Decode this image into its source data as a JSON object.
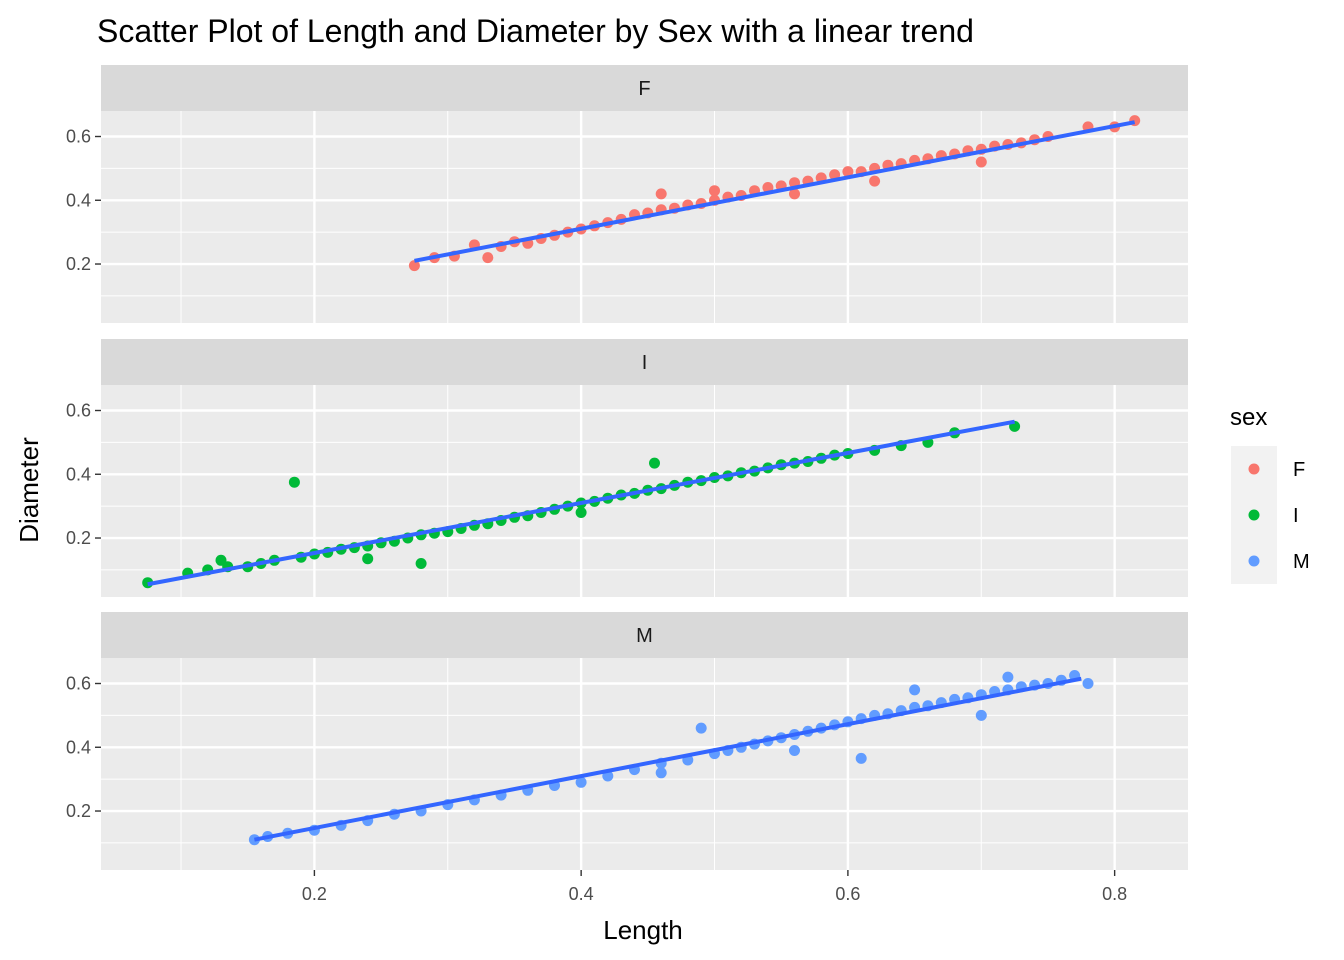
{
  "chart_data": {
    "type": "scatter",
    "title": "Scatter Plot of Length and Diameter by Sex with a linear trend",
    "xlabel": "Length",
    "ylabel": "Diameter",
    "xlim": [
      0.04,
      0.855
    ],
    "ylim": [
      0.015,
      0.68
    ],
    "x_ticks": [
      0.2,
      0.4,
      0.6,
      0.8
    ],
    "x_tick_labels": [
      "0.2",
      "0.4",
      "0.6",
      "0.8"
    ],
    "y_ticks": [
      0.2,
      0.4,
      0.6
    ],
    "y_tick_labels": [
      "0.2",
      "0.4",
      "0.6"
    ],
    "grid": true,
    "facet_by": "sex",
    "legend": {
      "title": "sex",
      "position": "right",
      "entries": [
        "F",
        "I",
        "M"
      ]
    },
    "colors": {
      "F": "#F8766D",
      "I": "#00BA38",
      "M": "#619CFF",
      "trend": "#3366FF"
    },
    "series": [
      {
        "name": "F",
        "trend": {
          "x": [
            0.275,
            0.815
          ],
          "y": [
            0.21,
            0.645
          ]
        },
        "points": [
          [
            0.275,
            0.195
          ],
          [
            0.29,
            0.22
          ],
          [
            0.305,
            0.225
          ],
          [
            0.32,
            0.26
          ],
          [
            0.33,
            0.22
          ],
          [
            0.34,
            0.255
          ],
          [
            0.35,
            0.27
          ],
          [
            0.36,
            0.265
          ],
          [
            0.37,
            0.28
          ],
          [
            0.38,
            0.29
          ],
          [
            0.39,
            0.3
          ],
          [
            0.4,
            0.31
          ],
          [
            0.41,
            0.32
          ],
          [
            0.42,
            0.33
          ],
          [
            0.43,
            0.34
          ],
          [
            0.44,
            0.355
          ],
          [
            0.45,
            0.36
          ],
          [
            0.46,
            0.37
          ],
          [
            0.46,
            0.42
          ],
          [
            0.47,
            0.375
          ],
          [
            0.48,
            0.385
          ],
          [
            0.49,
            0.39
          ],
          [
            0.5,
            0.4
          ],
          [
            0.5,
            0.43
          ],
          [
            0.51,
            0.41
          ],
          [
            0.52,
            0.415
          ],
          [
            0.53,
            0.43
          ],
          [
            0.54,
            0.44
          ],
          [
            0.55,
            0.445
          ],
          [
            0.56,
            0.455
          ],
          [
            0.57,
            0.46
          ],
          [
            0.58,
            0.47
          ],
          [
            0.59,
            0.48
          ],
          [
            0.6,
            0.49
          ],
          [
            0.61,
            0.49
          ],
          [
            0.62,
            0.5
          ],
          [
            0.63,
            0.51
          ],
          [
            0.64,
            0.515
          ],
          [
            0.65,
            0.525
          ],
          [
            0.66,
            0.53
          ],
          [
            0.67,
            0.54
          ],
          [
            0.68,
            0.545
          ],
          [
            0.69,
            0.555
          ],
          [
            0.7,
            0.56
          ],
          [
            0.71,
            0.57
          ],
          [
            0.72,
            0.575
          ],
          [
            0.73,
            0.58
          ],
          [
            0.74,
            0.59
          ],
          [
            0.75,
            0.6
          ],
          [
            0.78,
            0.63
          ],
          [
            0.8,
            0.63
          ],
          [
            0.815,
            0.65
          ],
          [
            0.56,
            0.42
          ],
          [
            0.62,
            0.46
          ],
          [
            0.7,
            0.52
          ]
        ]
      },
      {
        "name": "I",
        "trend": {
          "x": [
            0.075,
            0.725
          ],
          "y": [
            0.055,
            0.565
          ]
        },
        "points": [
          [
            0.075,
            0.06
          ],
          [
            0.105,
            0.09
          ],
          [
            0.12,
            0.1
          ],
          [
            0.13,
            0.13
          ],
          [
            0.135,
            0.11
          ],
          [
            0.15,
            0.11
          ],
          [
            0.16,
            0.12
          ],
          [
            0.17,
            0.13
          ],
          [
            0.185,
            0.375
          ],
          [
            0.19,
            0.14
          ],
          [
            0.2,
            0.15
          ],
          [
            0.21,
            0.155
          ],
          [
            0.22,
            0.165
          ],
          [
            0.23,
            0.17
          ],
          [
            0.24,
            0.175
          ],
          [
            0.25,
            0.185
          ],
          [
            0.26,
            0.19
          ],
          [
            0.27,
            0.2
          ],
          [
            0.28,
            0.12
          ],
          [
            0.28,
            0.21
          ],
          [
            0.29,
            0.215
          ],
          [
            0.3,
            0.22
          ],
          [
            0.31,
            0.23
          ],
          [
            0.32,
            0.24
          ],
          [
            0.33,
            0.245
          ],
          [
            0.34,
            0.255
          ],
          [
            0.35,
            0.265
          ],
          [
            0.36,
            0.27
          ],
          [
            0.37,
            0.28
          ],
          [
            0.38,
            0.29
          ],
          [
            0.39,
            0.3
          ],
          [
            0.4,
            0.31
          ],
          [
            0.41,
            0.315
          ],
          [
            0.42,
            0.325
          ],
          [
            0.43,
            0.335
          ],
          [
            0.44,
            0.34
          ],
          [
            0.45,
            0.35
          ],
          [
            0.455,
            0.435
          ],
          [
            0.46,
            0.355
          ],
          [
            0.47,
            0.365
          ],
          [
            0.48,
            0.375
          ],
          [
            0.49,
            0.38
          ],
          [
            0.5,
            0.39
          ],
          [
            0.51,
            0.395
          ],
          [
            0.52,
            0.405
          ],
          [
            0.53,
            0.41
          ],
          [
            0.54,
            0.42
          ],
          [
            0.55,
            0.43
          ],
          [
            0.56,
            0.435
          ],
          [
            0.57,
            0.44
          ],
          [
            0.58,
            0.45
          ],
          [
            0.59,
            0.46
          ],
          [
            0.6,
            0.465
          ],
          [
            0.62,
            0.475
          ],
          [
            0.64,
            0.49
          ],
          [
            0.66,
            0.5
          ],
          [
            0.68,
            0.53
          ],
          [
            0.725,
            0.55
          ],
          [
            0.24,
            0.135
          ],
          [
            0.4,
            0.28
          ]
        ]
      },
      {
        "name": "M",
        "trend": {
          "x": [
            0.155,
            0.775
          ],
          "y": [
            0.11,
            0.615
          ]
        },
        "points": [
          [
            0.155,
            0.11
          ],
          [
            0.165,
            0.12
          ],
          [
            0.18,
            0.13
          ],
          [
            0.2,
            0.14
          ],
          [
            0.22,
            0.155
          ],
          [
            0.24,
            0.17
          ],
          [
            0.26,
            0.19
          ],
          [
            0.28,
            0.2
          ],
          [
            0.3,
            0.22
          ],
          [
            0.32,
            0.235
          ],
          [
            0.34,
            0.25
          ],
          [
            0.36,
            0.265
          ],
          [
            0.38,
            0.28
          ],
          [
            0.4,
            0.29
          ],
          [
            0.42,
            0.31
          ],
          [
            0.44,
            0.33
          ],
          [
            0.46,
            0.35
          ],
          [
            0.48,
            0.36
          ],
          [
            0.49,
            0.46
          ],
          [
            0.5,
            0.38
          ],
          [
            0.51,
            0.39
          ],
          [
            0.52,
            0.4
          ],
          [
            0.53,
            0.41
          ],
          [
            0.54,
            0.42
          ],
          [
            0.55,
            0.43
          ],
          [
            0.56,
            0.44
          ],
          [
            0.57,
            0.45
          ],
          [
            0.58,
            0.46
          ],
          [
            0.59,
            0.47
          ],
          [
            0.6,
            0.48
          ],
          [
            0.61,
            0.49
          ],
          [
            0.62,
            0.5
          ],
          [
            0.63,
            0.505
          ],
          [
            0.64,
            0.515
          ],
          [
            0.65,
            0.525
          ],
          [
            0.66,
            0.53
          ],
          [
            0.67,
            0.54
          ],
          [
            0.68,
            0.55
          ],
          [
            0.69,
            0.555
          ],
          [
            0.7,
            0.565
          ],
          [
            0.71,
            0.575
          ],
          [
            0.72,
            0.58
          ],
          [
            0.73,
            0.59
          ],
          [
            0.74,
            0.595
          ],
          [
            0.75,
            0.6
          ],
          [
            0.76,
            0.61
          ],
          [
            0.77,
            0.625
          ],
          [
            0.78,
            0.6
          ],
          [
            0.61,
            0.365
          ],
          [
            0.65,
            0.58
          ],
          [
            0.7,
            0.5
          ],
          [
            0.72,
            0.62
          ],
          [
            0.56,
            0.39
          ],
          [
            0.46,
            0.32
          ]
        ]
      }
    ]
  }
}
